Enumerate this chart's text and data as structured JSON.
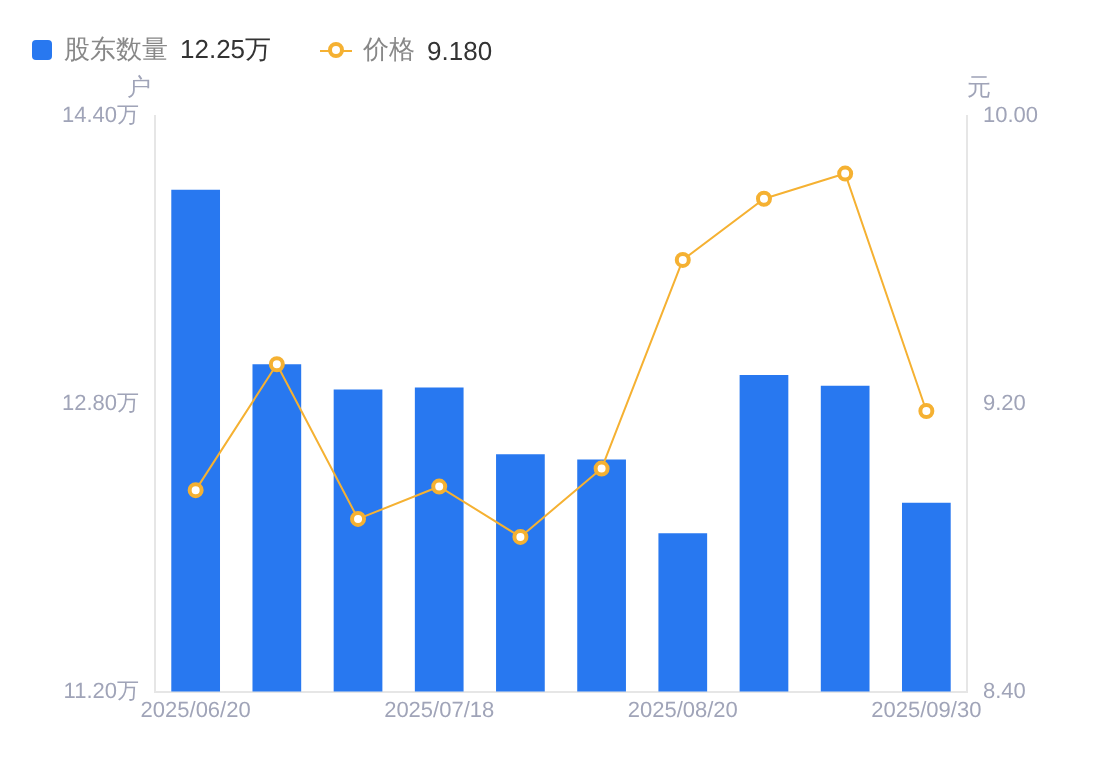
{
  "chart_data": {
    "type": "bar",
    "ylabel": "户",
    "y2label": "元",
    "categories": [
      "2025/06/20",
      null,
      null,
      "2025/07/18",
      null,
      null,
      "2025/08/20",
      null,
      null,
      "2025/09/30"
    ],
    "series": [
      {
        "name": "股东数量",
        "color": "#2878f0",
        "values": [
          13.99,
          13.02,
          12.88,
          12.89,
          12.52,
          12.49,
          12.08,
          12.96,
          12.9,
          12.25
        ]
      },
      {
        "name": "价格",
        "type": "line",
        "axis": "y2",
        "color": "#f5b132",
        "values": [
          8.96,
          9.31,
          8.88,
          8.97,
          8.83,
          9.02,
          9.6,
          9.77,
          9.84,
          9.18
        ]
      }
    ],
    "annotations": [
      "12.25万",
      "9.180"
    ],
    "ylim": [
      11.2,
      14.4
    ],
    "yticks": [
      {
        "value": 11.2,
        "label": "11.20万"
      },
      {
        "value": 12.8,
        "label": "12.80万"
      },
      {
        "value": 14.4,
        "label": "14.40万"
      }
    ],
    "y2lim": [
      8.4,
      10
    ],
    "y2ticks": [
      {
        "value": 8.4,
        "label": "8.40"
      },
      {
        "value": 9.2,
        "label": "9.20"
      },
      {
        "value": 10,
        "label": "10.00"
      }
    ],
    "legend": "top left",
    "marker": "circle",
    "line_style": "solid",
    "grid": false
  }
}
